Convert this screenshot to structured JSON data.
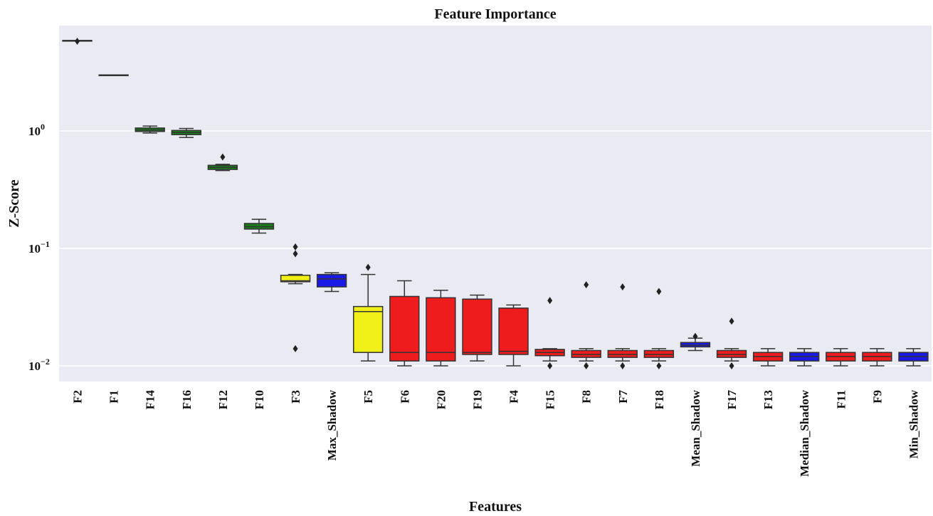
{
  "chart_data": {
    "type": "box",
    "title": "Feature Importance",
    "xlabel": "Features",
    "ylabel": "Z-Score",
    "yscale": "log",
    "ylim": [
      0.0082,
      7.5
    ],
    "yticks": [
      {
        "value": 1,
        "base": "10",
        "exp": "0"
      },
      {
        "value": 0.1,
        "base": "10",
        "exp": "−1"
      },
      {
        "value": 0.01,
        "base": "10",
        "exp": "−2"
      }
    ],
    "grid": true,
    "colors": {
      "background": "#eaeaf2",
      "grid": "#ffffff",
      "green": "#1a7f1a",
      "yellow": "#f0f018",
      "blue": "#1a1ae6",
      "red": "#ee1c1c",
      "line": "#333333"
    },
    "boxes": [
      {
        "label": "F2",
        "color": "green",
        "min": 5.9,
        "q1": 5.9,
        "median": 5.9,
        "q3": 5.9,
        "max": 5.9,
        "outliers": [
          5.8
        ]
      },
      {
        "label": "F1",
        "color": "green",
        "min": 3.0,
        "q1": 3.0,
        "median": 3.0,
        "q3": 3.0,
        "max": 3.0,
        "outliers": []
      },
      {
        "label": "F14",
        "color": "green",
        "min": 0.96,
        "q1": 0.99,
        "median": 1.02,
        "q3": 1.06,
        "max": 1.1,
        "outliers": []
      },
      {
        "label": "F16",
        "color": "green",
        "min": 0.88,
        "q1": 0.93,
        "median": 0.97,
        "q3": 1.01,
        "max": 1.05,
        "outliers": []
      },
      {
        "label": "F12",
        "color": "green",
        "min": 0.46,
        "q1": 0.47,
        "median": 0.49,
        "q3": 0.51,
        "max": 0.52,
        "outliers": [
          0.6
        ]
      },
      {
        "label": "F10",
        "color": "green",
        "min": 0.135,
        "q1": 0.146,
        "median": 0.153,
        "q3": 0.163,
        "max": 0.177,
        "outliers": []
      },
      {
        "label": "F3",
        "color": "yellow",
        "min": 0.05,
        "q1": 0.052,
        "median": 0.053,
        "q3": 0.059,
        "max": 0.06,
        "outliers": [
          0.103,
          0.09,
          0.014
        ]
      },
      {
        "label": "Max_Shadow",
        "color": "blue",
        "min": 0.043,
        "q1": 0.047,
        "median": 0.055,
        "q3": 0.06,
        "max": 0.062,
        "outliers": []
      },
      {
        "label": "F5",
        "color": "yellow",
        "min": 0.011,
        "q1": 0.013,
        "median": 0.029,
        "q3": 0.032,
        "max": 0.06,
        "outliers": [
          0.069
        ]
      },
      {
        "label": "F6",
        "color": "red",
        "min": 0.01,
        "q1": 0.011,
        "median": 0.013,
        "q3": 0.039,
        "max": 0.053,
        "outliers": []
      },
      {
        "label": "F20",
        "color": "red",
        "min": 0.01,
        "q1": 0.011,
        "median": 0.013,
        "q3": 0.038,
        "max": 0.044,
        "outliers": []
      },
      {
        "label": "F19",
        "color": "red",
        "min": 0.011,
        "q1": 0.0125,
        "median": 0.013,
        "q3": 0.037,
        "max": 0.04,
        "outliers": []
      },
      {
        "label": "F4",
        "color": "red",
        "min": 0.01,
        "q1": 0.0125,
        "median": 0.0133,
        "q3": 0.031,
        "max": 0.033,
        "outliers": []
      },
      {
        "label": "F15",
        "color": "red",
        "min": 0.011,
        "q1": 0.0122,
        "median": 0.013,
        "q3": 0.0138,
        "max": 0.014,
        "outliers": [
          0.036,
          0.01
        ]
      },
      {
        "label": "F8",
        "color": "red",
        "min": 0.011,
        "q1": 0.0118,
        "median": 0.0125,
        "q3": 0.0135,
        "max": 0.014,
        "outliers": [
          0.049,
          0.01
        ]
      },
      {
        "label": "F7",
        "color": "red",
        "min": 0.011,
        "q1": 0.0118,
        "median": 0.0125,
        "q3": 0.0135,
        "max": 0.014,
        "outliers": [
          0.047,
          0.01
        ]
      },
      {
        "label": "F18",
        "color": "red",
        "min": 0.011,
        "q1": 0.0118,
        "median": 0.0125,
        "q3": 0.0135,
        "max": 0.014,
        "outliers": [
          0.043,
          0.01
        ]
      },
      {
        "label": "Mean_Shadow",
        "color": "blue",
        "min": 0.0135,
        "q1": 0.0145,
        "median": 0.015,
        "q3": 0.0158,
        "max": 0.0172,
        "outliers": [
          0.0178
        ]
      },
      {
        "label": "F17",
        "color": "red",
        "min": 0.011,
        "q1": 0.0118,
        "median": 0.0125,
        "q3": 0.0135,
        "max": 0.014,
        "outliers": [
          0.024,
          0.01
        ]
      },
      {
        "label": "F13",
        "color": "red",
        "min": 0.01,
        "q1": 0.011,
        "median": 0.012,
        "q3": 0.013,
        "max": 0.014,
        "outliers": []
      },
      {
        "label": "Median_Shadow",
        "color": "blue",
        "min": 0.01,
        "q1": 0.011,
        "median": 0.012,
        "q3": 0.013,
        "max": 0.014,
        "outliers": []
      },
      {
        "label": "F11",
        "color": "red",
        "min": 0.01,
        "q1": 0.011,
        "median": 0.012,
        "q3": 0.013,
        "max": 0.014,
        "outliers": []
      },
      {
        "label": "F9",
        "color": "red",
        "min": 0.01,
        "q1": 0.011,
        "median": 0.012,
        "q3": 0.013,
        "max": 0.014,
        "outliers": []
      },
      {
        "label": "Min_Shadow",
        "color": "blue",
        "min": 0.01,
        "q1": 0.011,
        "median": 0.012,
        "q3": 0.013,
        "max": 0.014,
        "outliers": []
      }
    ]
  }
}
